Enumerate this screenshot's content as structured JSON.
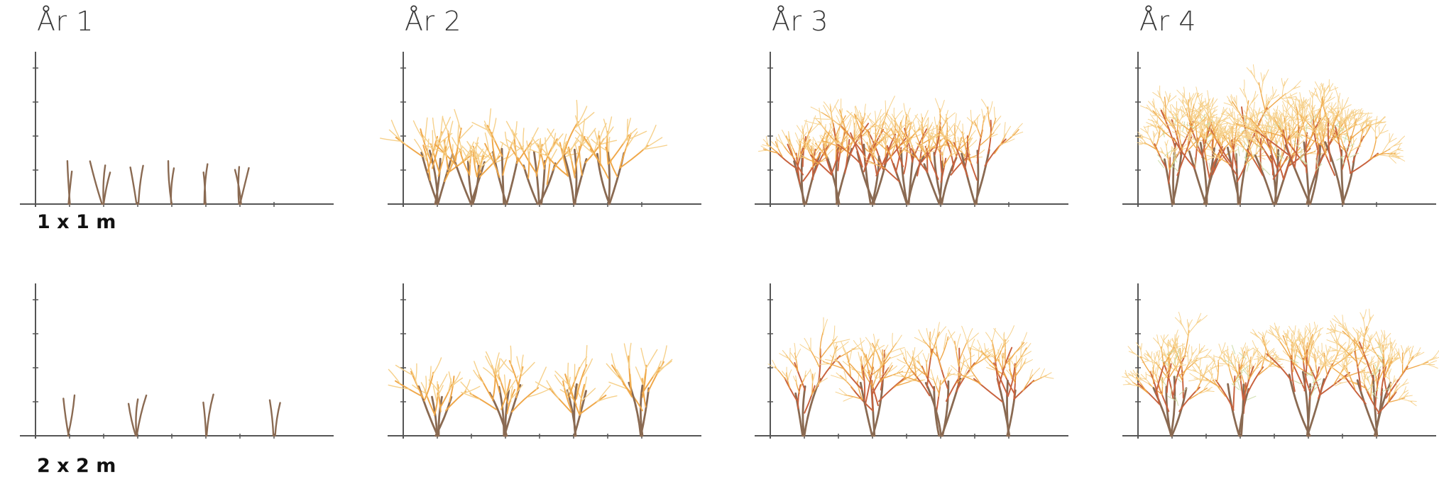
{
  "years": [
    {
      "label": "År 1"
    },
    {
      "label": "År 2"
    },
    {
      "label": "År 3"
    },
    {
      "label": "År 4"
    }
  ],
  "rows": [
    {
      "label": "1 x 1 m",
      "plants": 6
    },
    {
      "label": "2 x 2 m",
      "plants": 4
    }
  ],
  "colors": {
    "axis": "#555555",
    "stem_old": "#8a6a52",
    "stem_mid": "#c8623e",
    "stem_young": "#f0a84a",
    "stem_new": "#f6d08a",
    "leaf_green": "#c9d9a0"
  }
}
